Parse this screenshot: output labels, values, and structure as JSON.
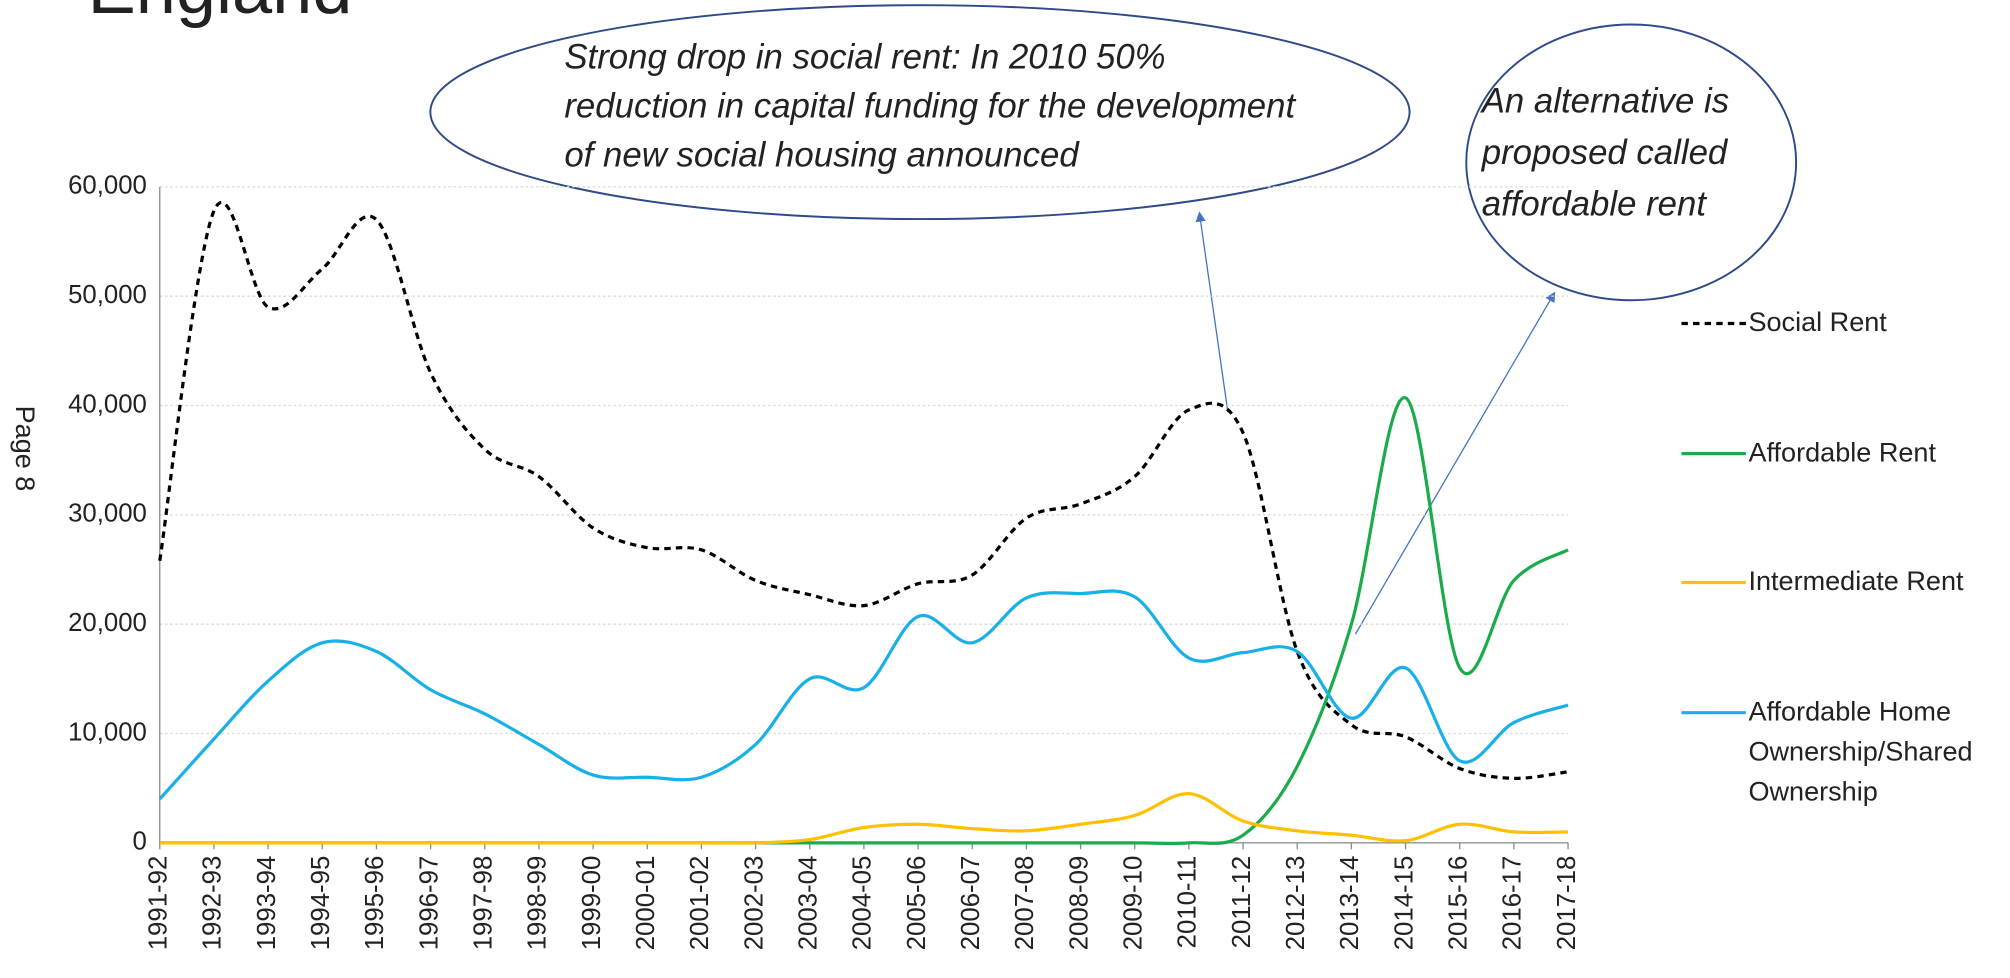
{
  "chart_data": {
    "type": "line",
    "title": "England",
    "page_label": "Page 8",
    "categories": [
      "1991-92",
      "1992-93",
      "1993-94",
      "1994-95",
      "1995-96",
      "1996-97",
      "1997-98",
      "1998-99",
      "1999-00",
      "2000-01",
      "2001-02",
      "2002-03",
      "2003-04",
      "2004-05",
      "2005-06",
      "2006-07",
      "2007-08",
      "2008-09",
      "2009-10",
      "2010-11",
      "2011-12",
      "2012-13",
      "2013-14",
      "2014-15",
      "2015-16",
      "2016-17",
      "2017-18"
    ],
    "series": [
      {
        "name": "Social Rent",
        "color": "#000000",
        "style": "dashed",
        "values": [
          25800,
          57800,
          49000,
          52500,
          57000,
          43000,
          36000,
          33500,
          28800,
          27000,
          26800,
          24000,
          22700,
          21700,
          23700,
          24500,
          29700,
          31000,
          33500,
          39600,
          37500,
          17500,
          10800,
          9700,
          6800,
          5900,
          6500
        ]
      },
      {
        "name": "Affordable Rent",
        "color": "#1aab4b",
        "style": "solid",
        "values": [
          0,
          0,
          0,
          0,
          0,
          0,
          0,
          0,
          0,
          0,
          0,
          0,
          0,
          0,
          0,
          0,
          0,
          0,
          0,
          0,
          700,
          7000,
          20000,
          40700,
          16000,
          24000,
          26800
        ]
      },
      {
        "name": "Intermediate Rent",
        "color": "#ffc000",
        "style": "solid",
        "values": [
          0,
          0,
          0,
          0,
          0,
          0,
          0,
          0,
          0,
          0,
          0,
          0,
          300,
          1400,
          1700,
          1300,
          1100,
          1700,
          2500,
          4500,
          2000,
          1100,
          700,
          200,
          1700,
          1000,
          1000
        ]
      },
      {
        "name": "Affordable Home Ownership/Shared Ownership",
        "color": "#19b0e8",
        "style": "solid",
        "values": [
          4000,
          9500,
          14800,
          18300,
          17500,
          14000,
          11800,
          9000,
          6200,
          6000,
          6000,
          9000,
          15000,
          14200,
          20700,
          18300,
          22400,
          22800,
          22500,
          16900,
          17400,
          17500,
          11400,
          16000,
          7500,
          11000,
          12600
        ]
      }
    ],
    "ylim": [
      0,
      60000
    ],
    "yticks": [
      0,
      {
        "value": 10000,
        "label": "10,000"
      },
      {
        "value": 20000,
        "label": "20,000"
      },
      {
        "value": 30000,
        "label": "30,000"
      },
      {
        "value": 40000,
        "label": "40,000"
      },
      {
        "value": 50000,
        "label": "50,000"
      },
      {
        "value": 60000,
        "label": "60,000"
      }
    ],
    "grid": true,
    "legend": "right",
    "annotations": [
      {
        "lines": [
          "Strong drop in social rent: In 2010 50%",
          "reduction in capital funding for the development",
          "of new social housing announced"
        ]
      },
      {
        "lines": [
          "An alternative is",
          "proposed called",
          "affordable rent"
        ]
      }
    ]
  }
}
